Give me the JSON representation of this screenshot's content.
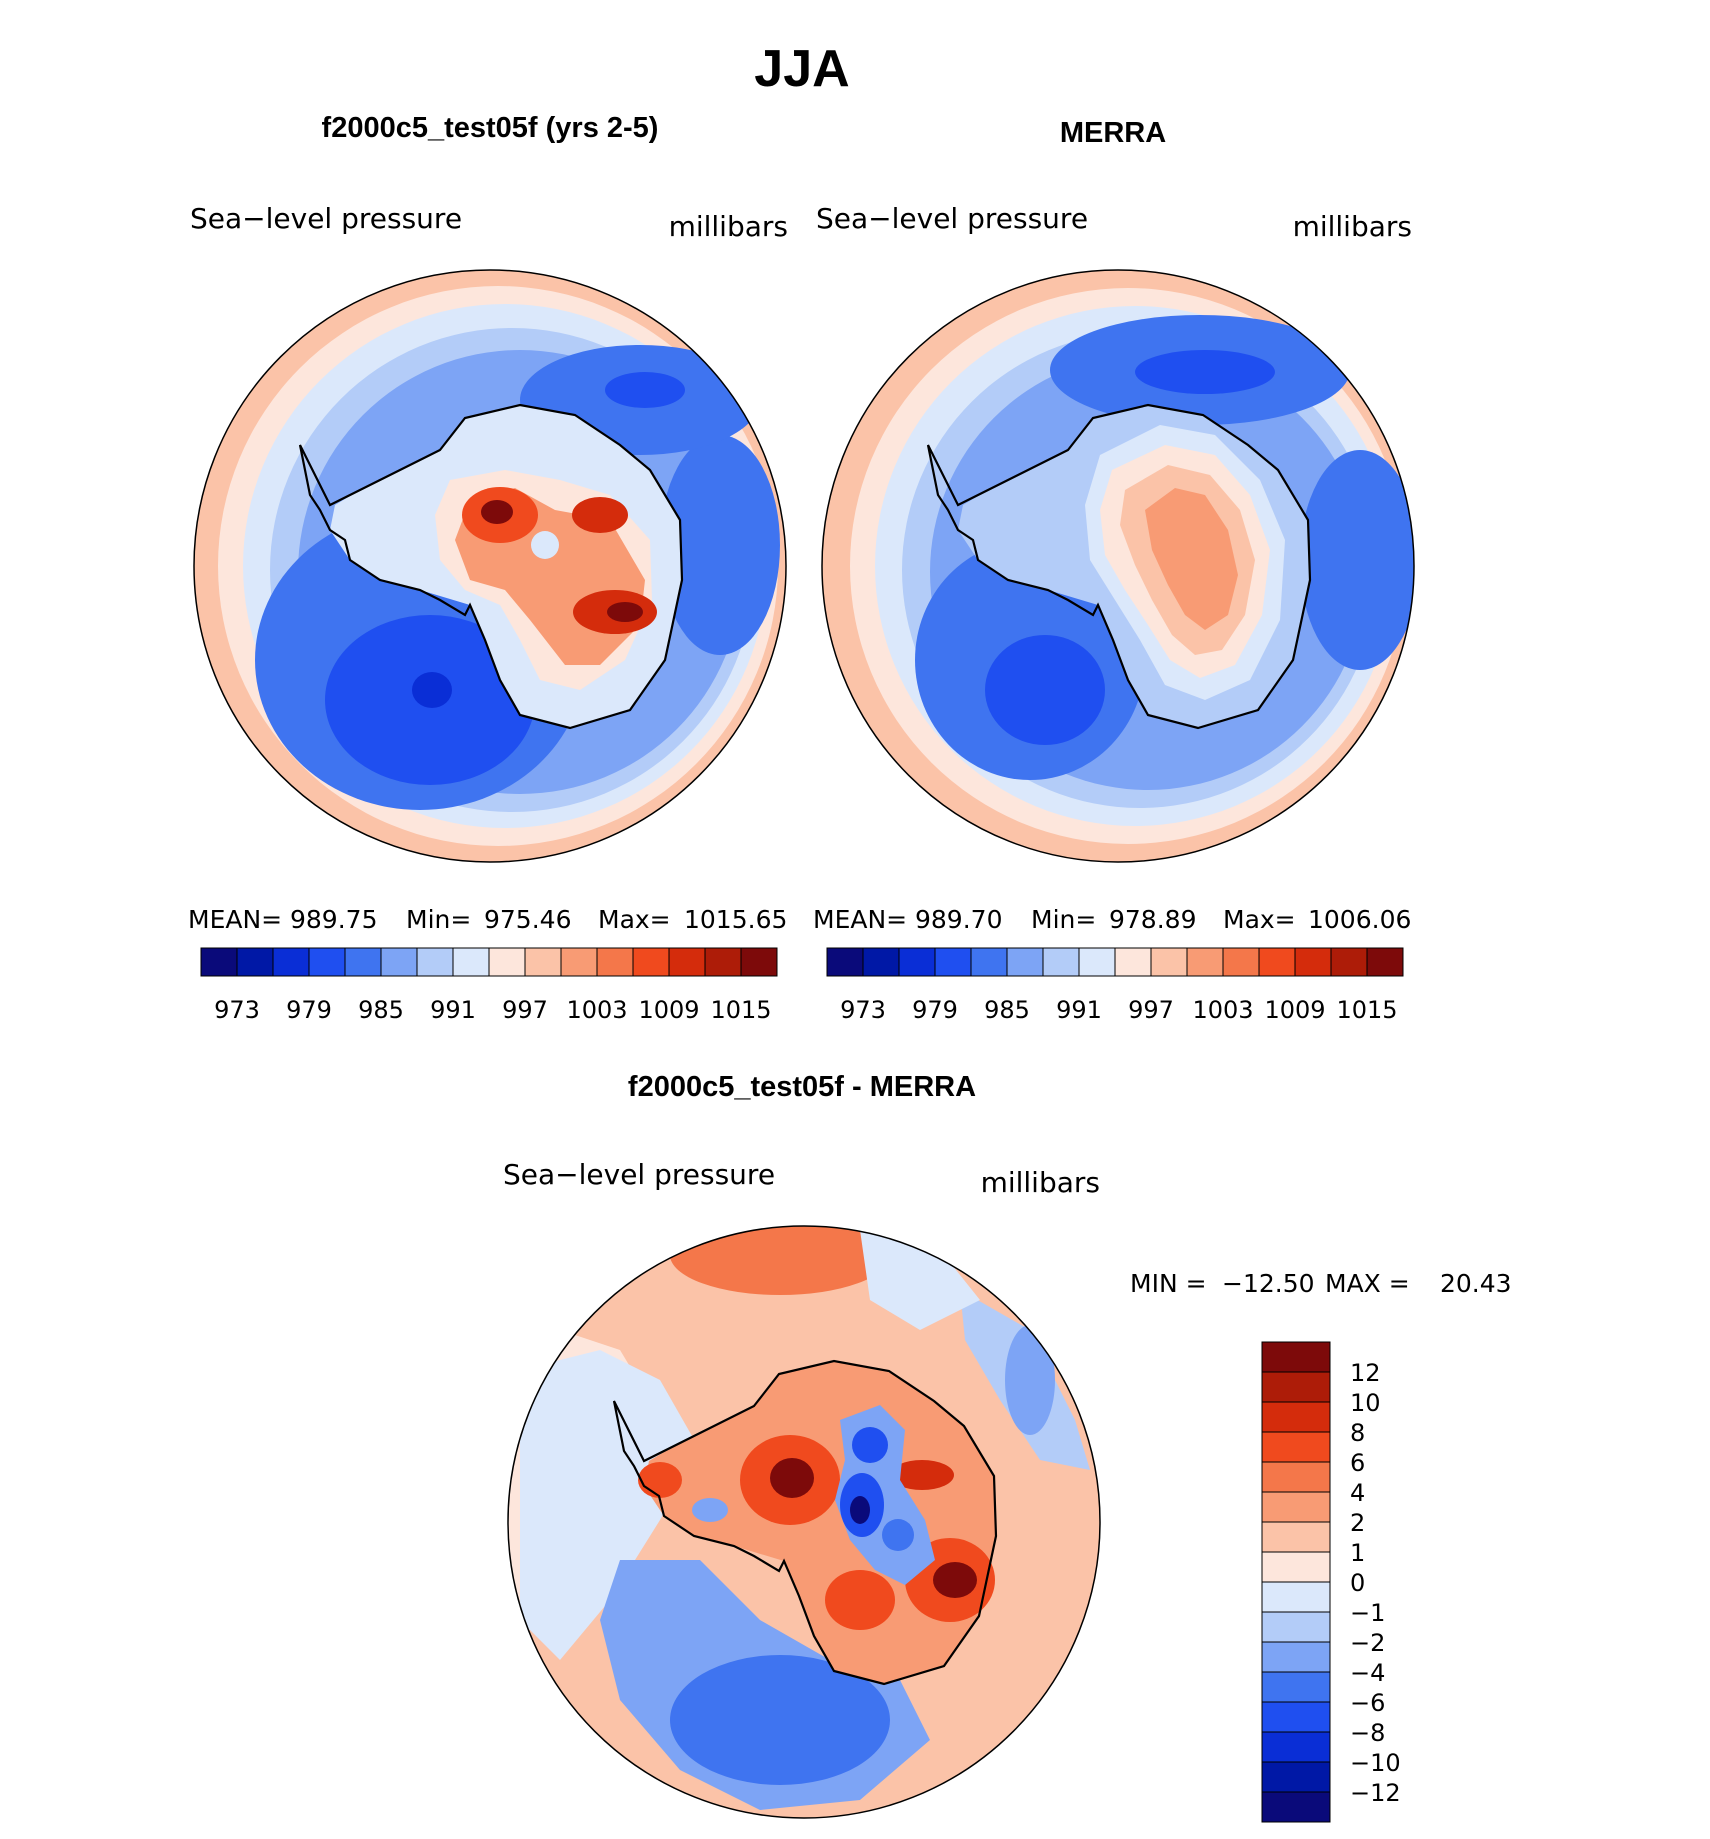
{
  "figure": {
    "title": "JJA"
  },
  "colors": {
    "abs_scale": [
      "#0a0a7a",
      "#0018a6",
      "#0a2ed6",
      "#1f4ff0",
      "#3f74f0",
      "#7da4f5",
      "#b3ccf8",
      "#dbe8fb",
      "#fde6dc",
      "#fbc3a8",
      "#f89b74",
      "#f4774a",
      "#f04a1e",
      "#d42c0c",
      "#ad1c08",
      "#7d0a0a"
    ],
    "diff_scale": [
      "#0a0a7a",
      "#0018a6",
      "#0a2ed6",
      "#1f4ff0",
      "#3f74f0",
      "#7da4f5",
      "#b3ccf8",
      "#dbe8fb",
      "#fde6dc",
      "#fbc3a8",
      "#f89b74",
      "#f4774a",
      "#f04a1e",
      "#d42c0c",
      "#ad1c08",
      "#7d0a0a"
    ],
    "coastline": "#000000"
  },
  "chart_data": [
    {
      "type": "heatmap",
      "projection": "south-polar-stereographic",
      "title": "f2000c5_test05f (yrs 2-5)",
      "variable": "Sea−level pressure",
      "units": "millibars",
      "stats": {
        "mean_label": "MEAN=",
        "mean": "989.75",
        "min_label": "Min=",
        "min": "975.46",
        "max_label": "Max=",
        "max": "1015.65"
      },
      "contour_levels": [
        973,
        976,
        979,
        982,
        985,
        988,
        991,
        994,
        997,
        1000,
        1003,
        1006,
        1009,
        1012,
        1015
      ],
      "colorbar_labels": [
        "973",
        "979",
        "985",
        "991",
        "997",
        "1003",
        "1009",
        "1015"
      ],
      "features": [
        {
          "kind": "ocean-band",
          "value": 1000
        },
        {
          "kind": "low",
          "region": "Pacific sector (lower-left)",
          "value": 976
        },
        {
          "kind": "low",
          "region": "Indian Ocean sector (right)",
          "value": 982
        },
        {
          "kind": "low",
          "region": "South Atlantic (upper-right)",
          "value": 982
        },
        {
          "kind": "high",
          "region": "East Antarctic plateau",
          "value": 1015
        },
        {
          "kind": "high",
          "region": "interior ridge",
          "value": 1009
        }
      ]
    },
    {
      "type": "heatmap",
      "projection": "south-polar-stereographic",
      "title": "MERRA",
      "variable": "Sea−level pressure",
      "units": "millibars",
      "stats": {
        "mean_label": "MEAN=",
        "mean": "989.70",
        "min_label": "Min=",
        "min": "978.89",
        "max_label": "Max=",
        "max": "1006.06"
      },
      "contour_levels": [
        973,
        976,
        979,
        982,
        985,
        988,
        991,
        994,
        997,
        1000,
        1003,
        1006,
        1009,
        1012,
        1015
      ],
      "colorbar_labels": [
        "973",
        "979",
        "985",
        "991",
        "997",
        "1003",
        "1009",
        "1015"
      ],
      "features": [
        {
          "kind": "ocean-band",
          "value": 1000
        },
        {
          "kind": "low",
          "region": "Pacific sector (lower-left)",
          "value": 982
        },
        {
          "kind": "low",
          "region": "Indian Ocean sector (right)",
          "value": 982
        },
        {
          "kind": "low",
          "region": "South Atlantic (upper-right)",
          "value": 982
        },
        {
          "kind": "high",
          "region": "East Antarctic plateau",
          "value": 1006
        }
      ]
    },
    {
      "type": "heatmap",
      "projection": "south-polar-stereographic",
      "title": "f2000c5_test05f - MERRA",
      "variable": "Sea−level pressure",
      "units": "millibars",
      "stats": {
        "min_label": "MIN =",
        "min": "−12.50",
        "max_label": "MAX =",
        "max": "20.43"
      },
      "contour_levels": [
        -12,
        -10,
        -8,
        -6,
        -4,
        -2,
        -1,
        0,
        1,
        2,
        4,
        6,
        8,
        10,
        12
      ],
      "colorbar_labels": [
        "12",
        "10",
        "8",
        "6",
        "4",
        "2",
        "1",
        "0",
        "−1",
        "−2",
        "−4",
        "−6",
        "−8",
        "−10",
        "−12"
      ],
      "features": [
        {
          "kind": "positive",
          "region": "Weddell/South Atlantic",
          "value": 4
        },
        {
          "kind": "negative",
          "region": "Pacific sector",
          "value": -4
        },
        {
          "kind": "negative",
          "region": "central plateau",
          "value": -12
        },
        {
          "kind": "positive",
          "region": "East Antarctic plateau",
          "value": 12
        }
      ]
    }
  ]
}
